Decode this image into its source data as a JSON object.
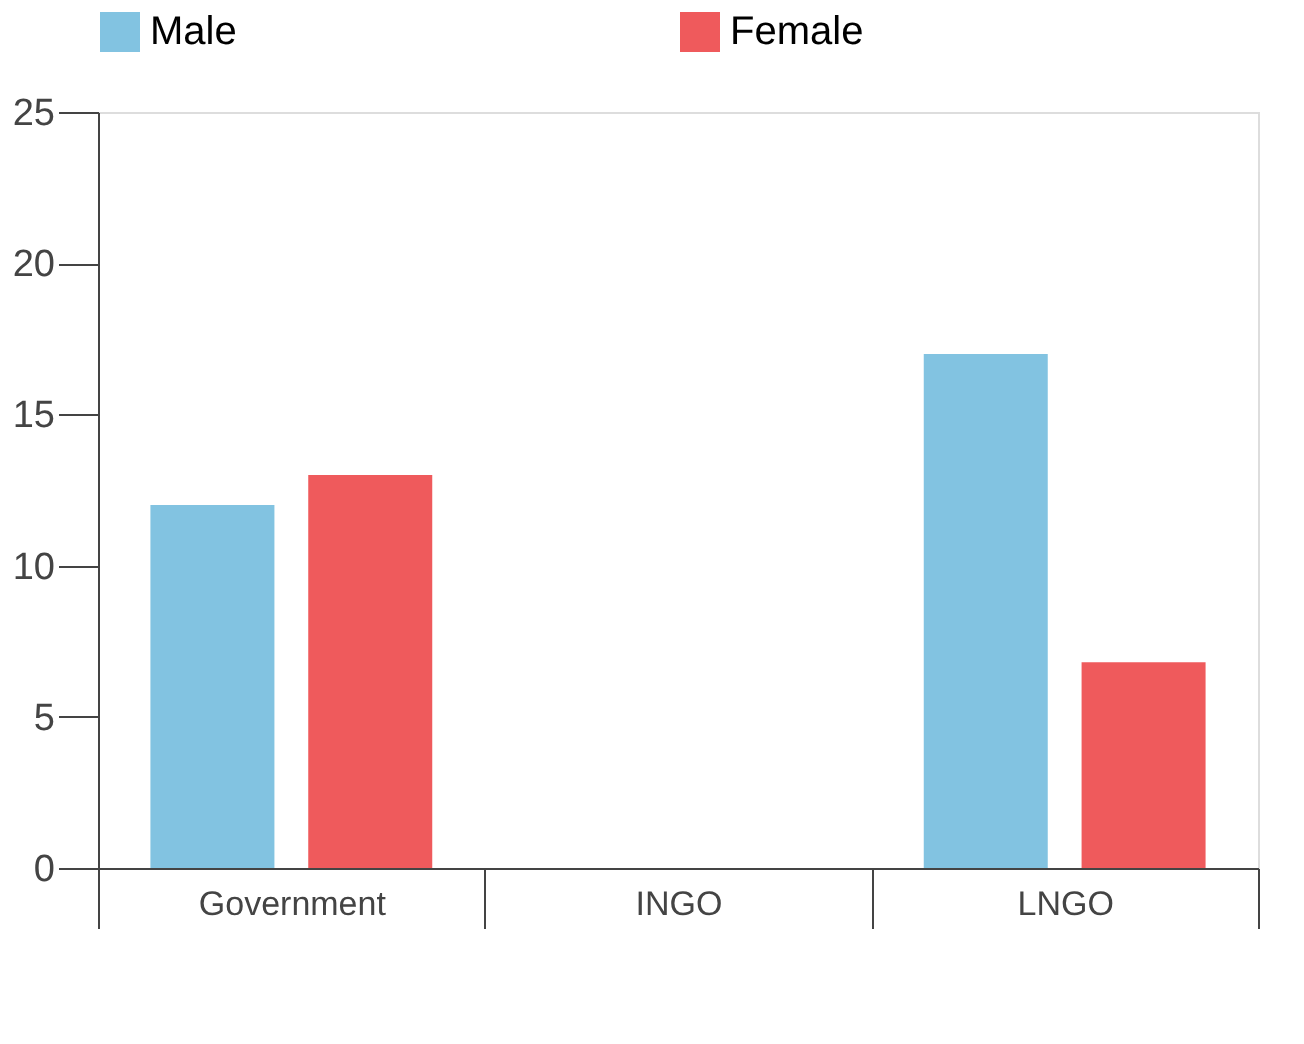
{
  "chart_data": {
    "type": "bar",
    "categories": [
      "Government",
      "INGO",
      "LNGO"
    ],
    "series": [
      {
        "name": "Male",
        "color": "#82c3e1",
        "values": [
          12,
          0,
          17
        ]
      },
      {
        "name": "Female",
        "color": "#ef5a5c",
        "values": [
          13,
          0,
          6.8
        ]
      }
    ],
    "ylim": [
      0,
      25
    ],
    "yticks": [
      0,
      5,
      10,
      15,
      20,
      25
    ],
    "grid": false,
    "legend": "top"
  }
}
